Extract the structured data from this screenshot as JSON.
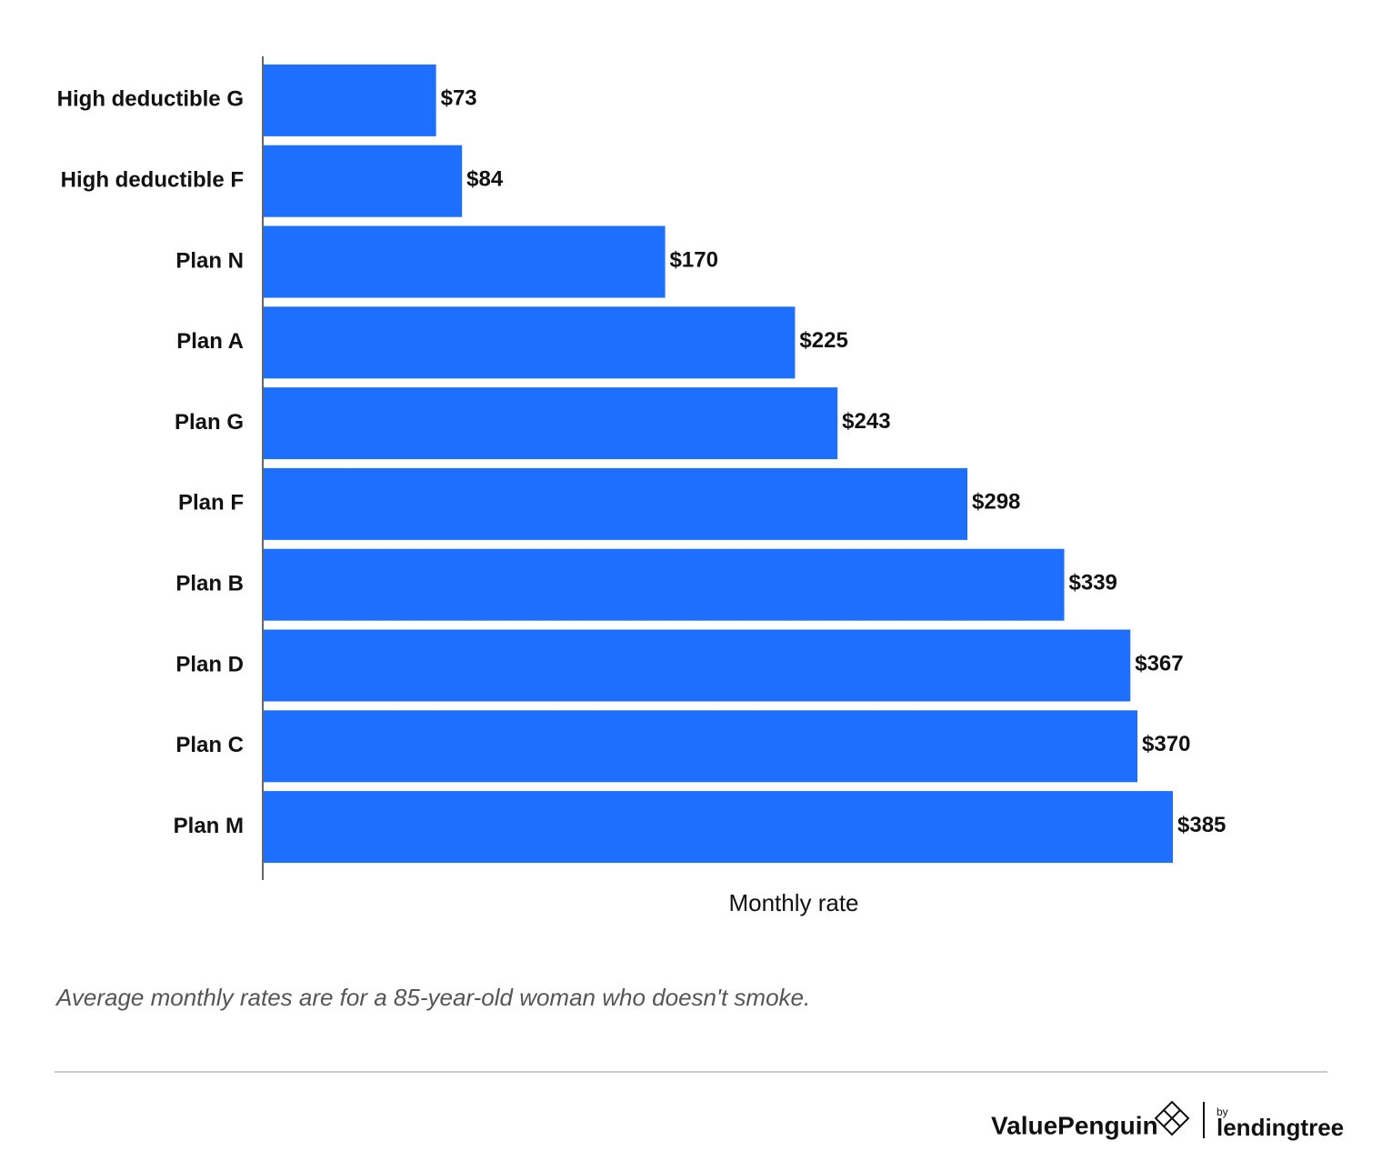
{
  "chart_data": {
    "type": "hbar",
    "x_label": "Monthly rate",
    "categories": [
      "High deductible G",
      "High deductible F",
      "Plan N",
      "Plan A",
      "Plan G",
      "Plan F",
      "Plan B",
      "Plan D",
      "Plan C",
      "Plan M"
    ],
    "values": [
      73,
      84,
      170,
      225,
      243,
      298,
      339,
      367,
      370,
      385
    ],
    "value_labels": [
      "$73",
      "$84",
      "$170",
      "$225",
      "$243",
      "$298",
      "$339",
      "$367",
      "$370",
      "$385"
    ],
    "color": "#1f6fff",
    "xlim": [
      0,
      385
    ],
    "note": "Average monthly rates are for a 85-year-old woman who doesn't smoke."
  },
  "footer": {
    "brand": "ValuePenguin",
    "by": "by",
    "partner": "lendingtree"
  }
}
